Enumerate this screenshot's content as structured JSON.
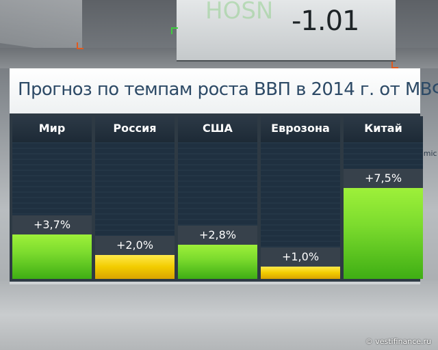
{
  "background": {
    "screen_code": "-1.01",
    "screen_faint": "HOSN",
    "right_fragment": "omic"
  },
  "title": "Прогноз по темпам роста ВВП в 2014 г. от МВФ",
  "credit": "© vestifinance.ru",
  "colors": {
    "green": "#7ddc2e",
    "yellow": "#f2cc00"
  },
  "chart_data": {
    "type": "bar",
    "title": "Прогноз по темпам роста ВВП в 2014 г. от МВФ",
    "categories": [
      "Мир",
      "Россия",
      "США",
      "Еврозона",
      "Китай"
    ],
    "values": [
      3.7,
      2.0,
      2.8,
      1.0,
      7.5
    ],
    "labels": [
      "+3,7%",
      "+2,0%",
      "+2,8%",
      "+1,0%",
      "+7,5%"
    ],
    "bar_colors": [
      "green",
      "yellow",
      "green",
      "yellow",
      "green"
    ],
    "ylim": [
      0,
      9.5
    ],
    "xlabel": "",
    "ylabel": "",
    "grid": false
  }
}
